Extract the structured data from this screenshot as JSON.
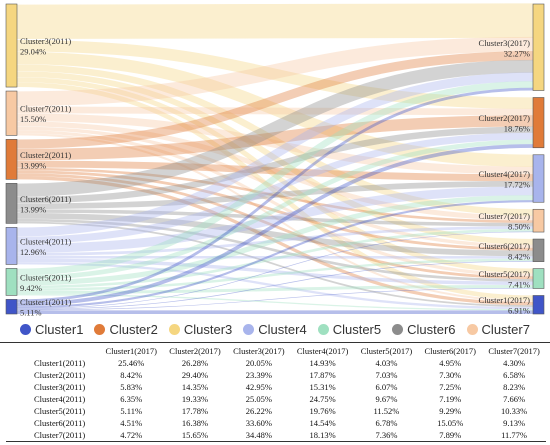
{
  "chart_data": {
    "type": "sankey",
    "series_names": [
      "Cluster1",
      "Cluster2",
      "Cluster3",
      "Cluster4",
      "Cluster5",
      "Cluster6",
      "Cluster7"
    ],
    "colors": [
      "#4055c8",
      "#e07b39",
      "#f5d680",
      "#a8b4ec",
      "#9fe0c0",
      "#8c8c8c",
      "#f7c9a3"
    ],
    "source_nodes": [
      {
        "cluster": 3,
        "name": "Cluster3(2011)",
        "share": "29.04%"
      },
      {
        "cluster": 7,
        "name": "Cluster7(2011)",
        "share": "15.50%"
      },
      {
        "cluster": 2,
        "name": "Cluster2(2011)",
        "share": "13.99%"
      },
      {
        "cluster": 6,
        "name": "Cluster6(2011)",
        "share": "13.99%"
      },
      {
        "cluster": 4,
        "name": "Cluster4(2011)",
        "share": "12.96%"
      },
      {
        "cluster": 5,
        "name": "Cluster5(2011)",
        "share": "9.42%"
      },
      {
        "cluster": 1,
        "name": "Cluster1(2011)",
        "share": "5.11%"
      }
    ],
    "target_nodes": [
      {
        "cluster": 3,
        "name": "Cluster3(2017)",
        "share": "32.27%"
      },
      {
        "cluster": 2,
        "name": "Cluster2(2017)",
        "share": "18.76%"
      },
      {
        "cluster": 4,
        "name": "Cluster4(2017)",
        "share": "17.72%"
      },
      {
        "cluster": 7,
        "name": "Cluster7(2017)",
        "share": "8.50%"
      },
      {
        "cluster": 6,
        "name": "Cluster6(2017)",
        "share": "8.42%"
      },
      {
        "cluster": 5,
        "name": "Cluster5(2017)",
        "share": "7.41%"
      },
      {
        "cluster": 1,
        "name": "Cluster1(2017)",
        "share": "6.91%"
      }
    ],
    "transition_table": {
      "columns": [
        "",
        "Cluster1(2017)",
        "Cluster2(2017)",
        "Cluster3(2017)",
        "Cluster4(2017)",
        "Cluster5(2017)",
        "Cluster6(2017)",
        "Cluster7(2017)"
      ],
      "rows": [
        {
          "label": "Cluster1(2011)",
          "values": [
            "25.46%",
            "26.28%",
            "20.05%",
            "14.93%",
            "4.03%",
            "4.95%",
            "4.30%"
          ]
        },
        {
          "label": "Cluster2(2011)",
          "values": [
            "8.42%",
            "29.40%",
            "23.39%",
            "17.87%",
            "7.03%",
            "7.30%",
            "6.58%"
          ]
        },
        {
          "label": "Cluster3(2011)",
          "values": [
            "5.83%",
            "14.35%",
            "42.95%",
            "15.31%",
            "6.07%",
            "7.25%",
            "8.23%"
          ]
        },
        {
          "label": "Cluster4(2011)",
          "values": [
            "6.35%",
            "19.33%",
            "25.05%",
            "24.75%",
            "9.67%",
            "7.19%",
            "7.66%"
          ]
        },
        {
          "label": "Cluster5(2011)",
          "values": [
            "5.11%",
            "17.78%",
            "26.22%",
            "19.76%",
            "11.52%",
            "9.29%",
            "10.33%"
          ]
        },
        {
          "label": "Cluster6(2011)",
          "values": [
            "4.51%",
            "16.38%",
            "33.60%",
            "14.54%",
            "6.78%",
            "15.05%",
            "9.13%"
          ]
        },
        {
          "label": "Cluster7(2011)",
          "values": [
            "4.72%",
            "15.65%",
            "34.48%",
            "18.13%",
            "7.36%",
            "7.89%",
            "11.77%"
          ]
        }
      ]
    }
  }
}
